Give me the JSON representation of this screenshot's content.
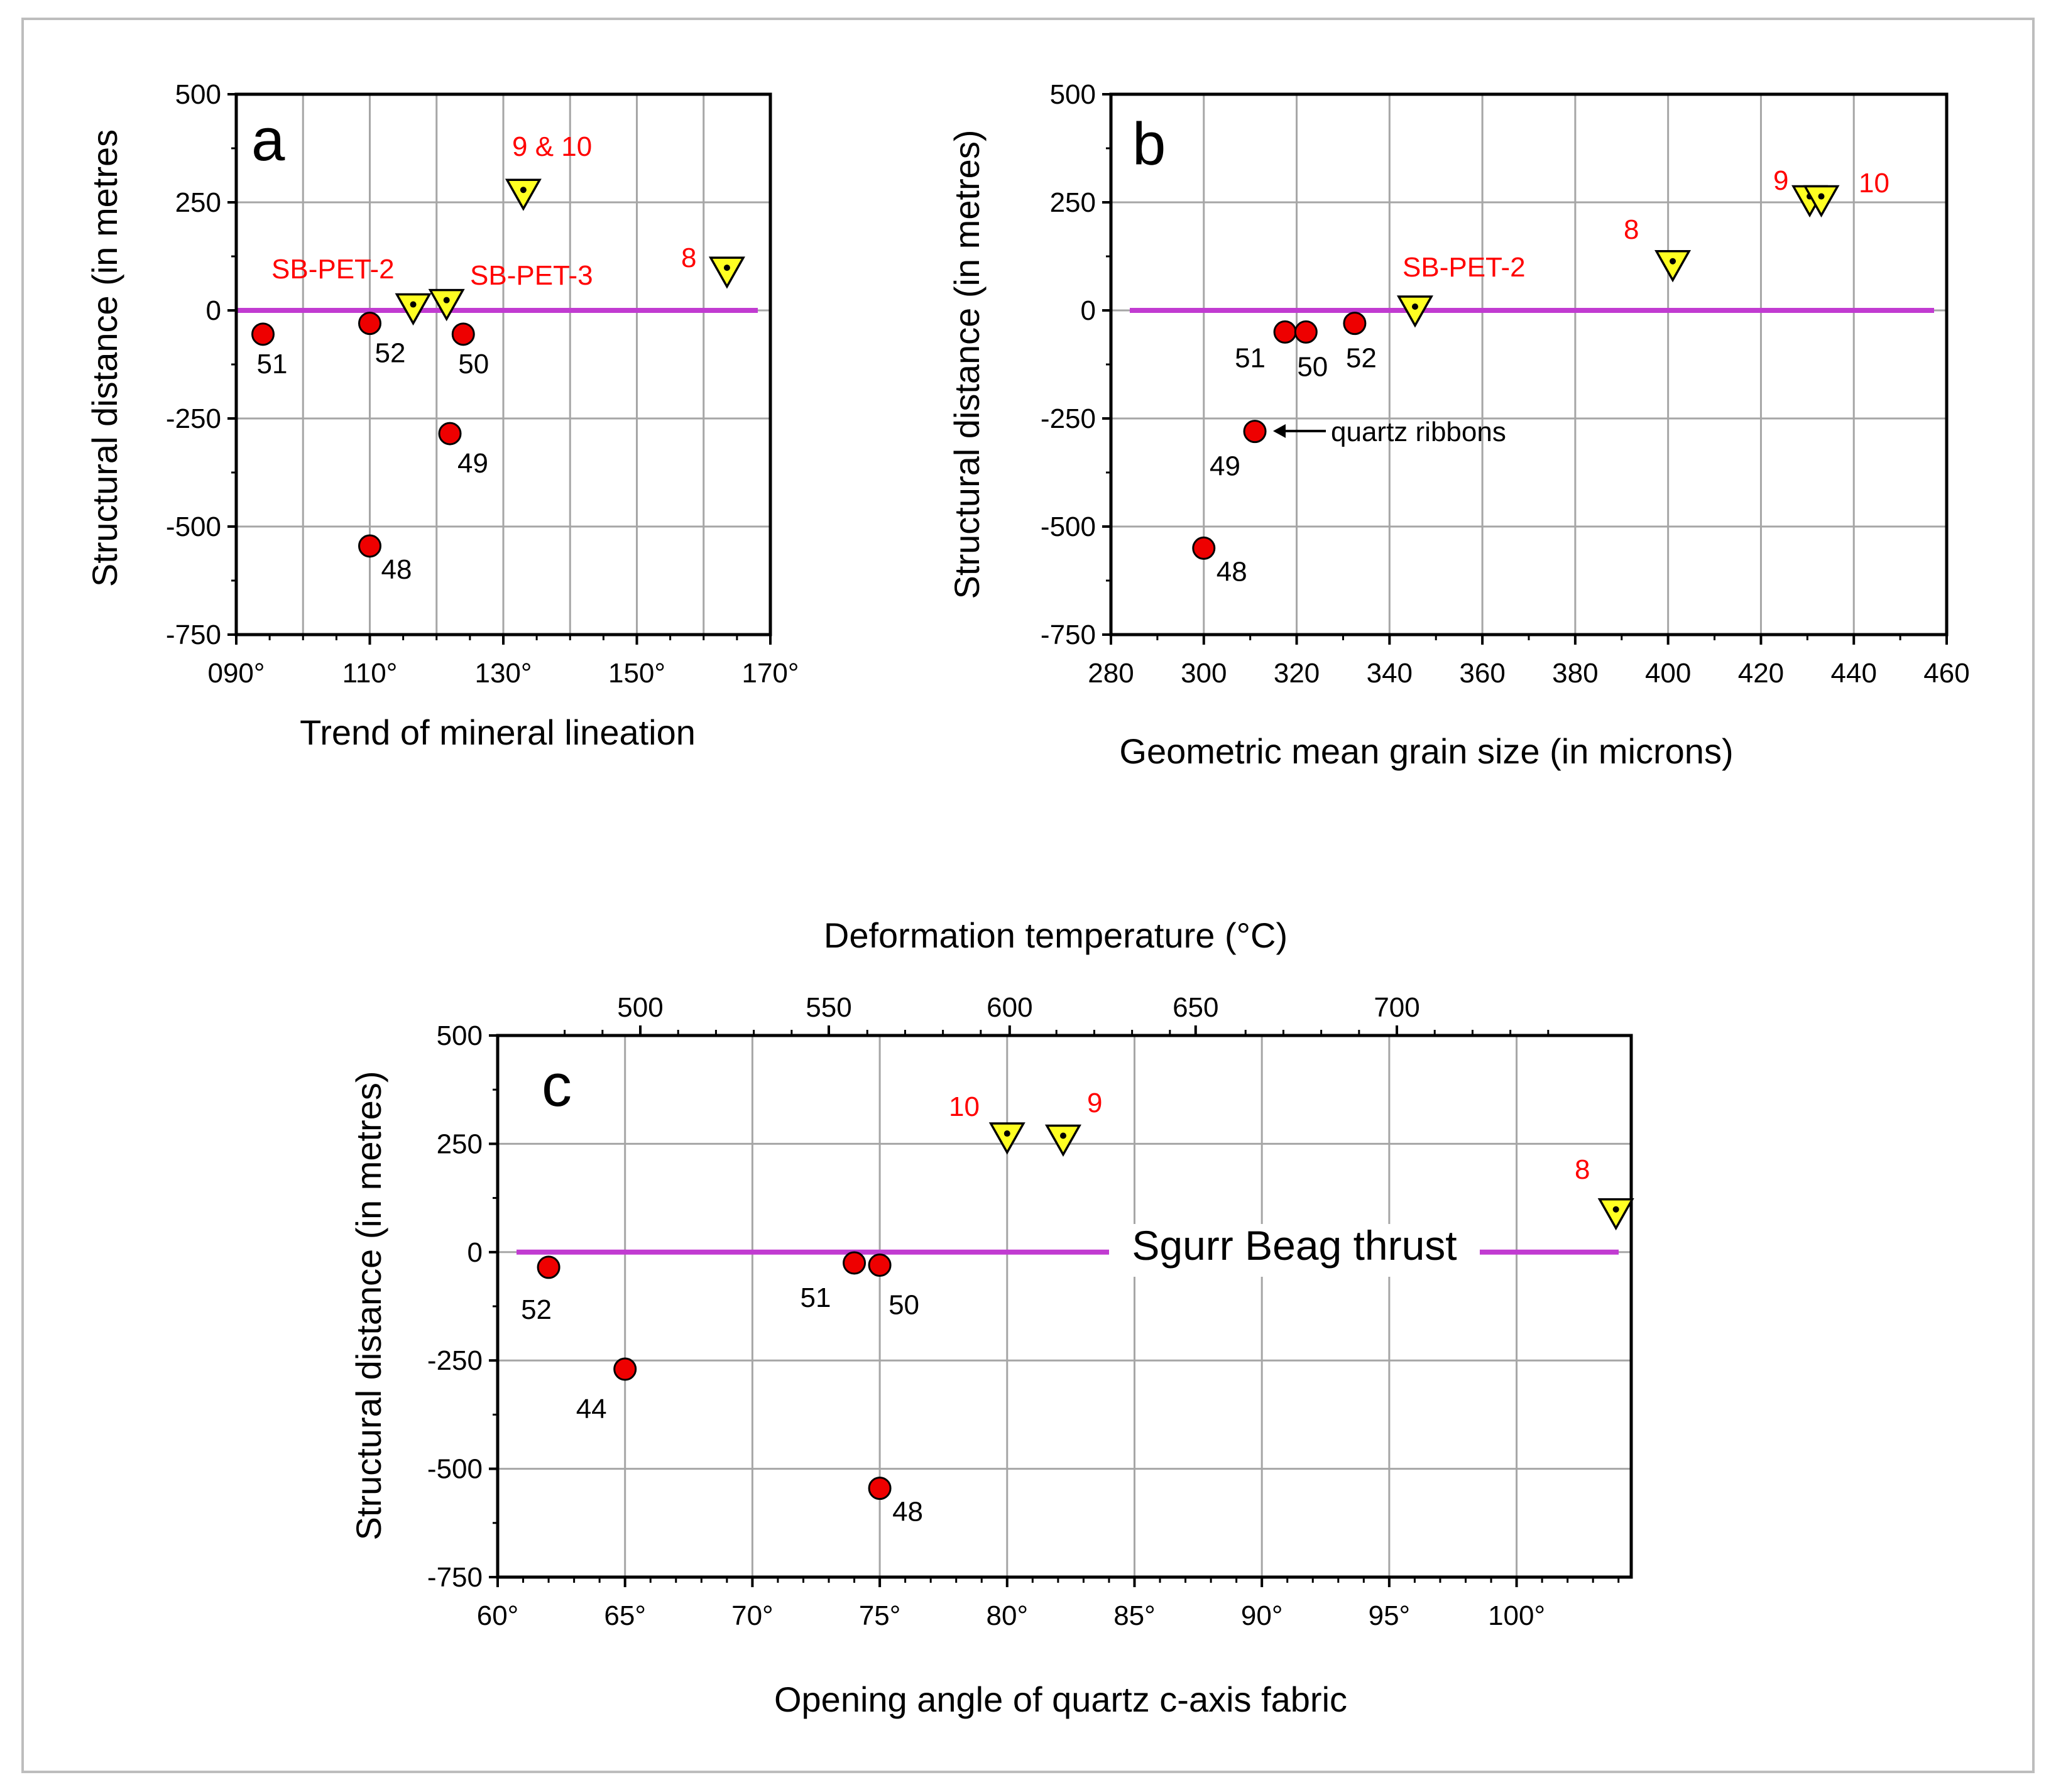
{
  "colors": {
    "thrust_line": "#c13bd1",
    "red_marker": "#ee0000",
    "yellow_marker": "#ffff22",
    "red_text": "#ff0000",
    "grid": "#a6a6a6"
  },
  "chart_data": [
    {
      "id": "a",
      "type": "scatter",
      "panel_letter": "a",
      "xlabel": "Trend of mineral lineation",
      "ylabel": "Structural distance (in metres",
      "xlim": [
        90,
        170
      ],
      "ylim": [
        -750,
        500
      ],
      "x_ticks": [
        {
          "value": 90,
          "label": "090°"
        },
        {
          "value": 110,
          "label": "110°"
        },
        {
          "value": 130,
          "label": "130°"
        },
        {
          "value": 150,
          "label": "150°"
        },
        {
          "value": 170,
          "label": "170°"
        }
      ],
      "x_gridlines": [
        100,
        110,
        120,
        130,
        140,
        150,
        160
      ],
      "y_ticks": [
        {
          "value": 500,
          "label": "500"
        },
        {
          "value": 250,
          "label": "250"
        },
        {
          "value": 0,
          "label": "0"
        },
        {
          "value": -250,
          "label": "-250"
        },
        {
          "value": -500,
          "label": "-500"
        },
        {
          "value": -750,
          "label": "-750"
        }
      ],
      "thrust_line_y": 0,
      "series": [
        {
          "name": "red samples",
          "marker": "circle",
          "points": [
            {
              "x": 94,
              "y": -55,
              "label": "51"
            },
            {
              "x": 110,
              "y": -30,
              "label": "52"
            },
            {
              "x": 124,
              "y": -55,
              "label": "50"
            },
            {
              "x": 122,
              "y": -285,
              "label": "49"
            },
            {
              "x": 110,
              "y": -545,
              "label": "48"
            }
          ]
        },
        {
          "name": "yellow samples",
          "marker": "triangle",
          "points": [
            {
              "x": 116.5,
              "y": 5
            },
            {
              "x": 121.5,
              "y": 15
            },
            {
              "x": 133,
              "y": 270
            },
            {
              "x": 163.5,
              "y": 90
            }
          ]
        }
      ],
      "annotations": [
        {
          "text": "9 & 10",
          "color": "red"
        },
        {
          "text": "8",
          "color": "red"
        },
        {
          "text": "SB-PET-2",
          "color": "red"
        },
        {
          "text": "SB-PET-3",
          "color": "red"
        }
      ]
    },
    {
      "id": "b",
      "type": "scatter",
      "panel_letter": "b",
      "xlabel": "Geometric mean grain size (in microns)",
      "ylabel": "Structural distance (in metres)",
      "xlim": [
        280,
        460
      ],
      "ylim": [
        -750,
        500
      ],
      "x_ticks": [
        {
          "value": 280,
          "label": "280"
        },
        {
          "value": 300,
          "label": "300"
        },
        {
          "value": 320,
          "label": "320"
        },
        {
          "value": 340,
          "label": "340"
        },
        {
          "value": 360,
          "label": "360"
        },
        {
          "value": 380,
          "label": "380"
        },
        {
          "value": 400,
          "label": "400"
        },
        {
          "value": 420,
          "label": "420"
        },
        {
          "value": 440,
          "label": "440"
        },
        {
          "value": 460,
          "label": "460"
        }
      ],
      "x_gridlines": [
        300,
        320,
        340,
        360,
        380,
        400,
        420,
        440
      ],
      "y_ticks": [
        {
          "value": 500,
          "label": "500"
        },
        {
          "value": 250,
          "label": "250"
        },
        {
          "value": 0,
          "label": "0"
        },
        {
          "value": -250,
          "label": "-250"
        },
        {
          "value": -500,
          "label": "-500"
        },
        {
          "value": -750,
          "label": "-750"
        }
      ],
      "thrust_line_y": 0,
      "series": [
        {
          "name": "red samples",
          "marker": "circle",
          "points": [
            {
              "x": 317.5,
              "y": -50,
              "label": "51"
            },
            {
              "x": 322,
              "y": -50,
              "label": "50"
            },
            {
              "x": 332.5,
              "y": -30,
              "label": "52"
            },
            {
              "x": 311,
              "y": -280,
              "label": "49"
            },
            {
              "x": 300,
              "y": -550,
              "label": "48"
            }
          ]
        },
        {
          "name": "yellow samples",
          "marker": "triangle",
          "points": [
            {
              "x": 345.5,
              "y": 0
            },
            {
              "x": 401,
              "y": 105
            },
            {
              "x": 430.5,
              "y": 255
            },
            {
              "x": 433,
              "y": 255
            }
          ]
        }
      ],
      "annotations": [
        {
          "text": "quartz ribbons",
          "color": "black"
        },
        {
          "text": "SB-PET-2",
          "color": "red"
        },
        {
          "text": "8",
          "color": "red"
        },
        {
          "text": "9",
          "color": "red"
        },
        {
          "text": "10",
          "color": "red"
        }
      ]
    },
    {
      "id": "c",
      "type": "scatter",
      "panel_letter": "c",
      "xlabel": "Opening angle of quartz c-axis fabric",
      "x2label": "Deformation temperature (°C)",
      "ylabel": "Structural distance (in metres)",
      "xlim": [
        60,
        104.5
      ],
      "ylim": [
        -750,
        500
      ],
      "x_ticks": [
        {
          "value": 60,
          "label": "60°"
        },
        {
          "value": 65,
          "label": "65°"
        },
        {
          "value": 70,
          "label": "70°"
        },
        {
          "value": 75,
          "label": "75°"
        },
        {
          "value": 80,
          "label": "80°"
        },
        {
          "value": 85,
          "label": "85°"
        },
        {
          "value": 90,
          "label": "90°"
        },
        {
          "value": 95,
          "label": "95°"
        },
        {
          "value": 100,
          "label": "100°"
        }
      ],
      "x_gridlines": [
        65,
        70,
        75,
        80,
        85,
        90,
        95,
        100
      ],
      "x2_ticks": [
        {
          "value": 500,
          "label": "500"
        },
        {
          "value": 550,
          "label": "550"
        },
        {
          "value": 600,
          "label": "600"
        },
        {
          "value": 650,
          "label": "650"
        },
        {
          "value": 700,
          "label": "700"
        }
      ],
      "y_ticks": [
        {
          "value": 500,
          "label": "500"
        },
        {
          "value": 250,
          "label": "250"
        },
        {
          "value": 0,
          "label": "0"
        },
        {
          "value": -250,
          "label": "-250"
        },
        {
          "value": -500,
          "label": "-500"
        },
        {
          "value": -750,
          "label": "-750"
        }
      ],
      "thrust_line_y": 0,
      "thrust_label": "Sgurr Beag thrust",
      "series": [
        {
          "name": "red samples",
          "marker": "circle",
          "points": [
            {
              "x": 62,
              "y": -35,
              "label": "52"
            },
            {
              "x": 74,
              "y": -25,
              "label": "51"
            },
            {
              "x": 75,
              "y": -30,
              "label": "50"
            },
            {
              "x": 65,
              "y": -270,
              "label": "44"
            },
            {
              "x": 75,
              "y": -545,
              "label": "48"
            }
          ]
        },
        {
          "name": "yellow samples",
          "marker": "triangle",
          "points": [
            {
              "x": 80,
              "y": 265
            },
            {
              "x": 82.2,
              "y": 260
            },
            {
              "x": 103.9,
              "y": 90
            }
          ]
        }
      ],
      "annotations": [
        {
          "text": "10",
          "color": "red"
        },
        {
          "text": "9",
          "color": "red"
        },
        {
          "text": "8",
          "color": "red"
        }
      ]
    }
  ]
}
